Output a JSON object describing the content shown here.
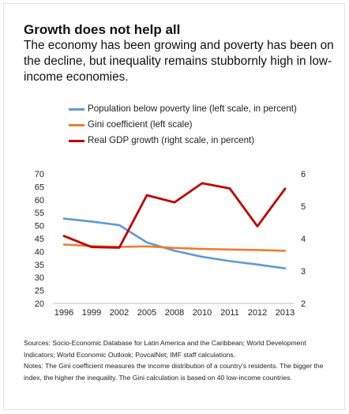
{
  "header": {
    "title": "Growth does not help all",
    "subtitle": "The economy has been growing and poverty has been on the decline, but inequality remains stubbornly high in low-income economies."
  },
  "chart_data": {
    "type": "line",
    "title": "Growth does not help all",
    "categories": [
      "1996",
      "1999",
      "2002",
      "2005",
      "2008",
      "2010",
      "2011",
      "2012",
      "2013"
    ],
    "left_axis": {
      "ylim": [
        20,
        70
      ],
      "ticks": [
        "20",
        "25",
        "30",
        "35",
        "40",
        "45",
        "50",
        "55",
        "60",
        "65",
        "70"
      ]
    },
    "right_axis": {
      "ylim": [
        2,
        6
      ],
      "ticks": [
        "2",
        "3",
        "4",
        "5",
        "6"
      ]
    },
    "grid": false,
    "legend_position": "top",
    "series": [
      {
        "name": "Population below poverty line (left scale, in percent)",
        "axis": "left",
        "color": "#5b9bd5",
        "values": [
          52.7,
          51.6,
          50.2,
          43.5,
          40.3,
          38.0,
          36.3,
          35.0,
          33.5
        ]
      },
      {
        "name": "Gini coefficient (left scale)",
        "axis": "left",
        "color": "#ed7d31",
        "values": [
          42.7,
          42.1,
          41.8,
          42.0,
          41.4,
          41.0,
          40.8,
          40.6,
          40.3
        ]
      },
      {
        "name": "Real GDP growth (right scale, in percent)",
        "axis": "right",
        "color": "#c00000",
        "values": [
          4.08,
          3.74,
          3.72,
          5.34,
          5.12,
          5.71,
          5.55,
          4.38,
          5.54
        ]
      }
    ]
  },
  "notes": {
    "sources": "Sources: Socio-Economic Database for Latin America and the Caribbean; World Development Indicators; World Economic Outlook; PovcalNet; IMF staff calculations.",
    "text": "Notes: The Gini coefficient measures the income distribution of a country's residents. The bigger the index, the higher the inequality. The Gini calculation is based on 40 low-income countries."
  }
}
